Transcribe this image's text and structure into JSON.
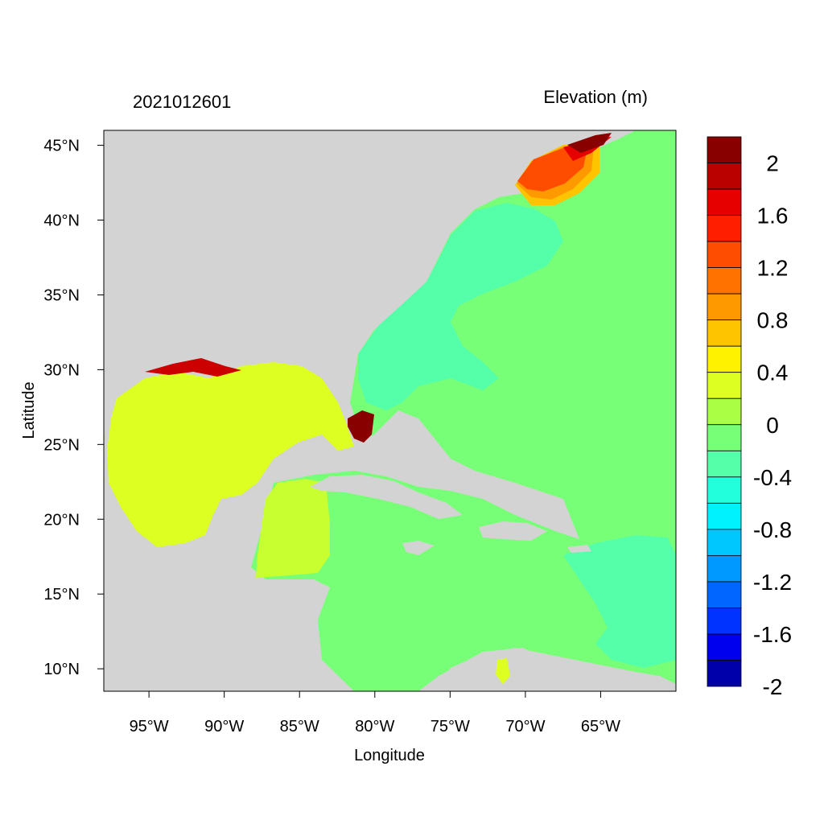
{
  "title_left": "2021012601",
  "title_right": "Elevation (m)",
  "x_axis_label": "Longitude",
  "y_axis_label": "Latitude",
  "x_ticks": [
    "95°W",
    "90°W",
    "85°W",
    "80°W",
    "75°W",
    "70°W",
    "65°W"
  ],
  "y_ticks": [
    "45°N",
    "40°N",
    "35°N",
    "30°N",
    "25°N",
    "20°N",
    "15°N",
    "10°N"
  ],
  "map_extent": {
    "lon_min": -98,
    "lon_max": -60,
    "lat_min": 8.5,
    "lat_max": 46
  },
  "colorbar": {
    "labels": [
      "2",
      "1.6",
      "1.2",
      "0.8",
      "0.4",
      "0",
      "-0.4",
      "-0.8",
      "-1.2",
      "-1.6",
      "-2"
    ],
    "colors_top_to_bottom": [
      "#880000",
      "#bb0000",
      "#e60000",
      "#ff1e00",
      "#ff4d00",
      "#ff7200",
      "#ff9900",
      "#ffc400",
      "#fff200",
      "#ddff22",
      "#aaff44",
      "#77ff77",
      "#55ffaa",
      "#22ffdd",
      "#00f2ff",
      "#00c8ff",
      "#0099ff",
      "#0066ff",
      "#0033ff",
      "#0000ee",
      "#0000aa"
    ]
  },
  "colors": {
    "land": "#d3d3d3",
    "atlantic_base": "#77ff77",
    "gulf": "#ddff22",
    "shelf": "#55ffaa",
    "surge_high": "#880000"
  }
}
